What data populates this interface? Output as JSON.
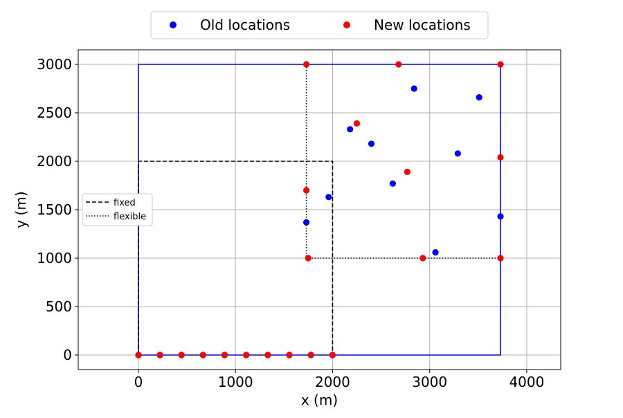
{
  "chart_data": {
    "type": "scatter",
    "xlabel": "x (m)",
    "ylabel": "y (m)",
    "xlim": [
      -620,
      4350
    ],
    "ylim": [
      -150,
      3150
    ],
    "xticks": [
      0,
      1000,
      2000,
      3000,
      4000
    ],
    "yticks": [
      0,
      500,
      1000,
      1500,
      2000,
      2500,
      3000
    ],
    "grid": true,
    "legends": {
      "top": {
        "placement": "top-center, outside",
        "entries": [
          "Old locations",
          "New locations"
        ]
      },
      "left": {
        "placement": "center-left",
        "entries": [
          "fixed",
          "flexible"
        ]
      }
    },
    "colors": {
      "old": "#0000ff",
      "new": "#ff0000",
      "boundary": "#0000ff",
      "lines": "#000000",
      "grid": "#b0b0b0"
    },
    "boundary": [
      [
        0,
        0
      ],
      [
        0,
        3000
      ],
      [
        3730,
        3000
      ],
      [
        3730,
        0
      ],
      [
        0,
        0
      ]
    ],
    "fixed_region": [
      [
        0,
        0
      ],
      [
        0,
        2000
      ],
      [
        2000,
        2000
      ],
      [
        2000,
        0
      ]
    ],
    "flexible_region": [
      [
        1730,
        3000
      ],
      [
        1730,
        1000
      ],
      [
        3730,
        1000
      ]
    ],
    "series": [
      {
        "name": "Old locations",
        "points": [
          [
            0,
            0
          ],
          [
            222,
            0
          ],
          [
            444,
            0
          ],
          [
            666,
            0
          ],
          [
            888,
            0
          ],
          [
            1111,
            0
          ],
          [
            1333,
            0
          ],
          [
            1555,
            0
          ],
          [
            1777,
            0
          ],
          [
            2000,
            0
          ],
          [
            1730,
            1370
          ],
          [
            1960,
            1630
          ],
          [
            2180,
            2330
          ],
          [
            2400,
            2180
          ],
          [
            2620,
            1770
          ],
          [
            2840,
            2750
          ],
          [
            3060,
            1060
          ],
          [
            3290,
            2080
          ],
          [
            3510,
            2660
          ],
          [
            3730,
            1430
          ]
        ]
      },
      {
        "name": "New locations",
        "points": [
          [
            0,
            0
          ],
          [
            222,
            0
          ],
          [
            444,
            0
          ],
          [
            666,
            0
          ],
          [
            888,
            0
          ],
          [
            1111,
            0
          ],
          [
            1333,
            0
          ],
          [
            1555,
            0
          ],
          [
            1777,
            0
          ],
          [
            2000,
            0
          ],
          [
            1730,
            1700
          ],
          [
            1750,
            1000
          ],
          [
            1730,
            3000
          ],
          [
            2250,
            2390
          ],
          [
            2680,
            3000
          ],
          [
            2770,
            1890
          ],
          [
            2930,
            1000
          ],
          [
            3730,
            3000
          ],
          [
            3730,
            2040
          ],
          [
            3730,
            1000
          ]
        ]
      }
    ]
  }
}
